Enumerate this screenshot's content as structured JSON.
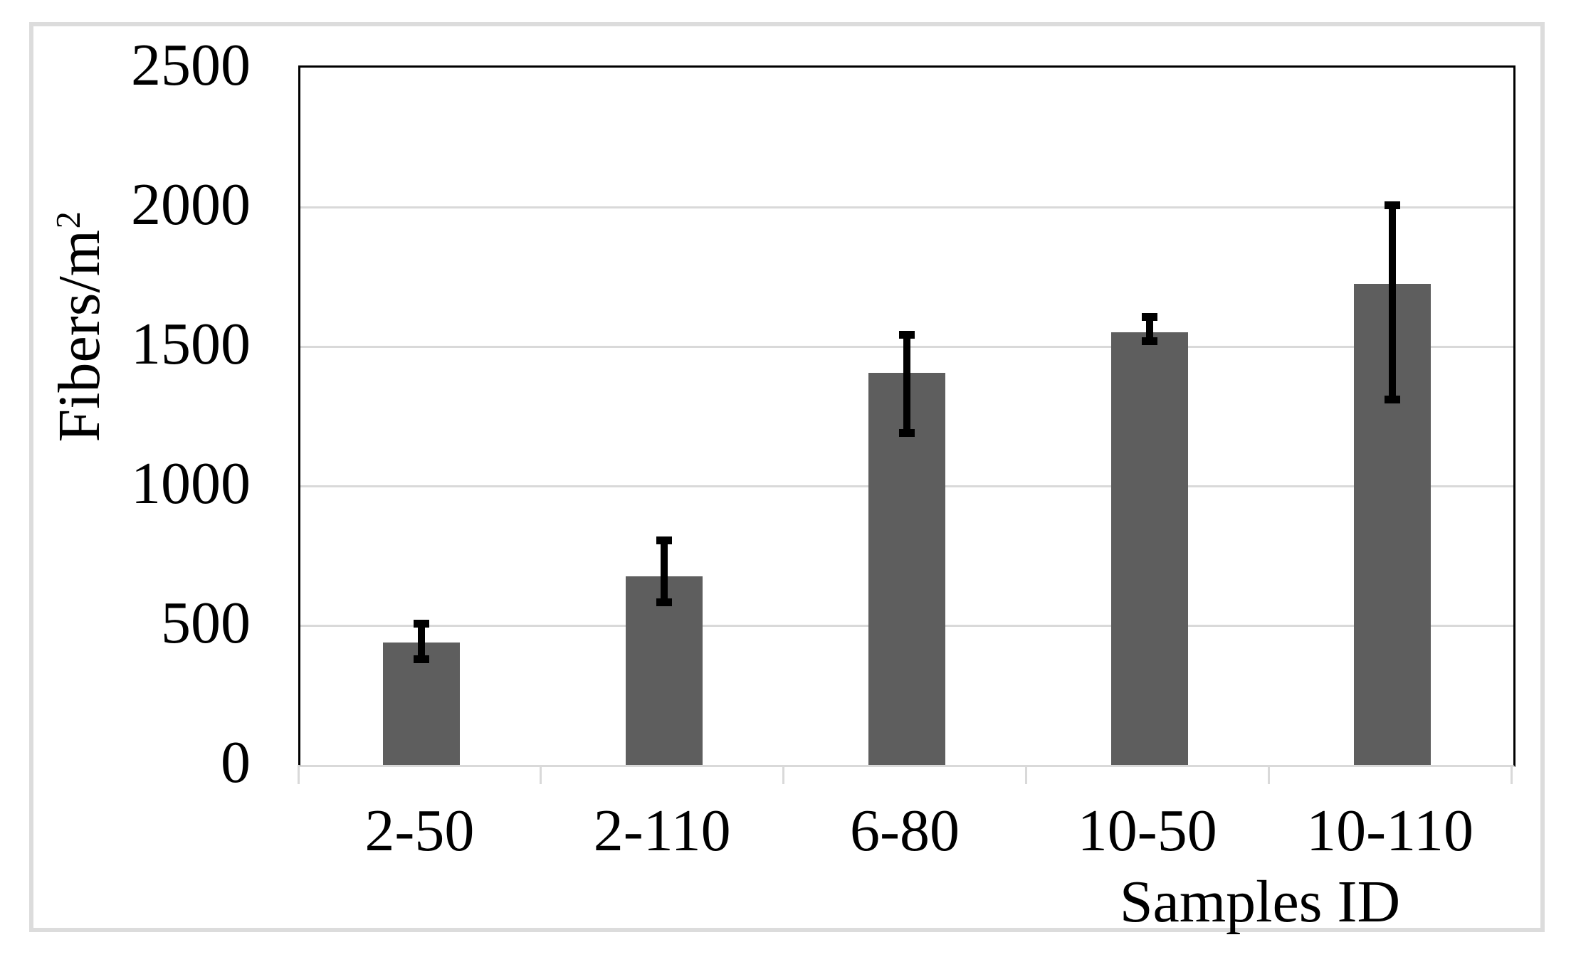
{
  "chart_data": {
    "type": "bar",
    "title": "",
    "categories": [
      "2-50",
      "2-110",
      "6-80",
      "10-50",
      "10-110"
    ],
    "values": [
      440,
      675,
      1405,
      1550,
      1725
    ],
    "error_whisker_top": [
      520,
      820,
      1555,
      1620,
      2020
    ],
    "error_whisker_bottom": [
      365,
      570,
      1175,
      1505,
      1295
    ],
    "xlabel": "Samples ID",
    "ylabel": "Fibers/m²",
    "ylabel_base": "Fibers/m",
    "ylabel_sup": "2",
    "yticks": [
      0,
      500,
      1000,
      1500,
      2000,
      2500
    ],
    "ylim": [
      0,
      2500
    ],
    "grid": "horizontal",
    "legend": "none",
    "colors": {
      "bar": "#5e5e5e",
      "error_bar": "#000000",
      "gridline": "#d9d9d9",
      "axis_line": "#d9d9d9",
      "plot_border": "#000000",
      "outer_frame": "#dcdcdc",
      "text": "#000000",
      "background": "#ffffff"
    }
  }
}
